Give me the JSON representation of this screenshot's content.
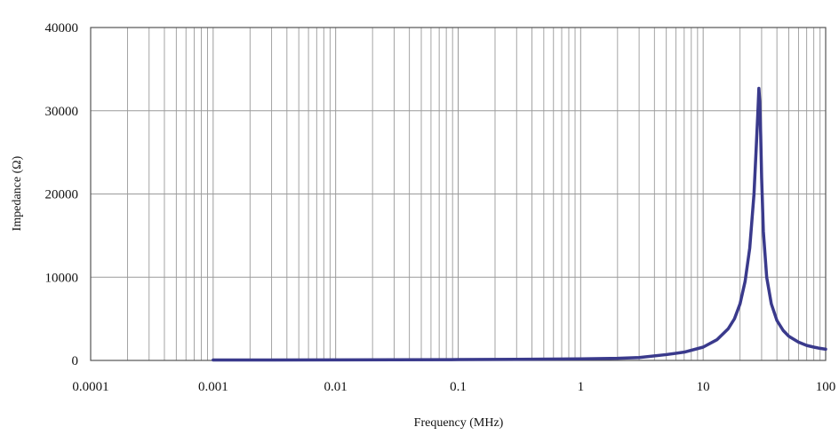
{
  "chart_data": {
    "type": "line",
    "title": "",
    "xlabel": "Frequency (MHz)",
    "ylabel": "Impedance (Ω)",
    "xscale": "log",
    "xlim": [
      0.0001,
      100
    ],
    "ylim": [
      0,
      40000
    ],
    "grid": true,
    "legend": "none",
    "x_tick_labels": [
      "0.0001",
      "0.001",
      "0.01",
      "0.1",
      "1",
      "10",
      "100"
    ],
    "y_tick_labels": [
      "0",
      "10000",
      "20000",
      "30000",
      "40000"
    ],
    "colors": {
      "series": "#3a3a8c",
      "grid": "#9a9a9a",
      "axis": "#555555"
    },
    "series": [
      {
        "x": [
          0.001,
          0.003,
          0.01,
          0.03,
          0.1,
          0.3,
          1,
          2,
          3,
          5,
          7,
          10,
          13,
          16,
          18,
          20,
          22,
          24,
          26,
          27,
          28,
          28.5,
          29,
          29.5,
          30,
          31,
          33,
          36,
          40,
          45,
          50,
          60,
          70,
          80,
          90,
          100
        ],
        "y": [
          50,
          60,
          70,
          80,
          100,
          130,
          180,
          250,
          350,
          700,
          1000,
          1600,
          2500,
          3800,
          5000,
          6800,
          9500,
          13500,
          20000,
          25000,
          30000,
          32700,
          31000,
          27000,
          22000,
          15500,
          10000,
          6800,
          4800,
          3600,
          2900,
          2200,
          1800,
          1600,
          1450,
          1350
        ]
      }
    ]
  }
}
